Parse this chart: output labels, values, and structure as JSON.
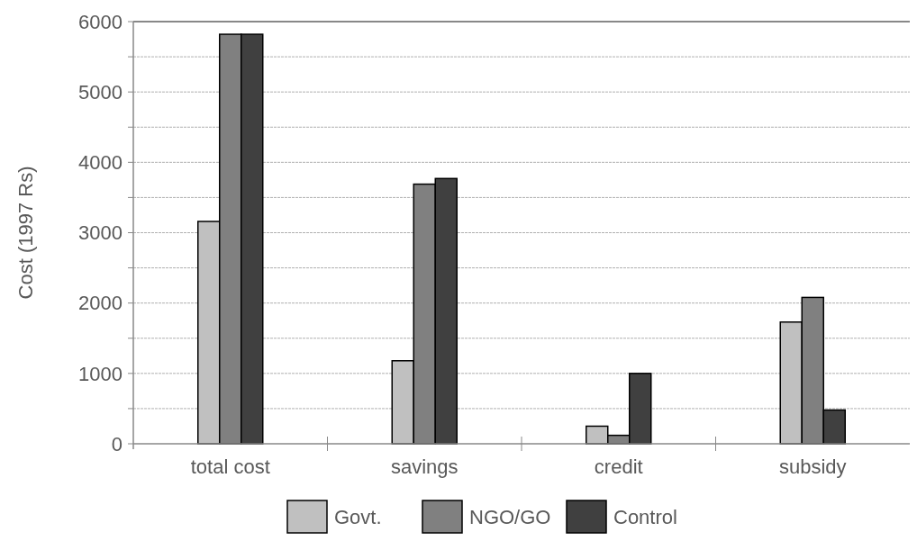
{
  "chart_data": {
    "type": "bar",
    "ylabel": "Cost (1997 Rs)",
    "categories": [
      "total cost",
      "savings",
      "credit",
      "subsidy"
    ],
    "series": [
      {
        "name": "Govt.",
        "color": "#c0c0c0",
        "values": [
          3160,
          1180,
          250,
          1730
        ]
      },
      {
        "name": "NGO/GO",
        "color": "#808080",
        "values": [
          5820,
          3690,
          120,
          2080
        ]
      },
      {
        "name": "Control",
        "color": "#404040",
        "values": [
          5820,
          3770,
          1000,
          480
        ]
      }
    ],
    "ylim": [
      0,
      6000
    ],
    "yticks": [
      0,
      {
        "value": 500,
        "label": null
      },
      1000,
      {
        "value": 1500,
        "label": null
      },
      2000,
      {
        "value": 2500,
        "label": null
      },
      3000,
      {
        "value": 3500,
        "label": null
      },
      4000,
      {
        "value": 4500,
        "label": null
      },
      5000,
      {
        "value": 5500,
        "label": null
      },
      6000
    ],
    "grid": "y",
    "legend": "bottom"
  }
}
